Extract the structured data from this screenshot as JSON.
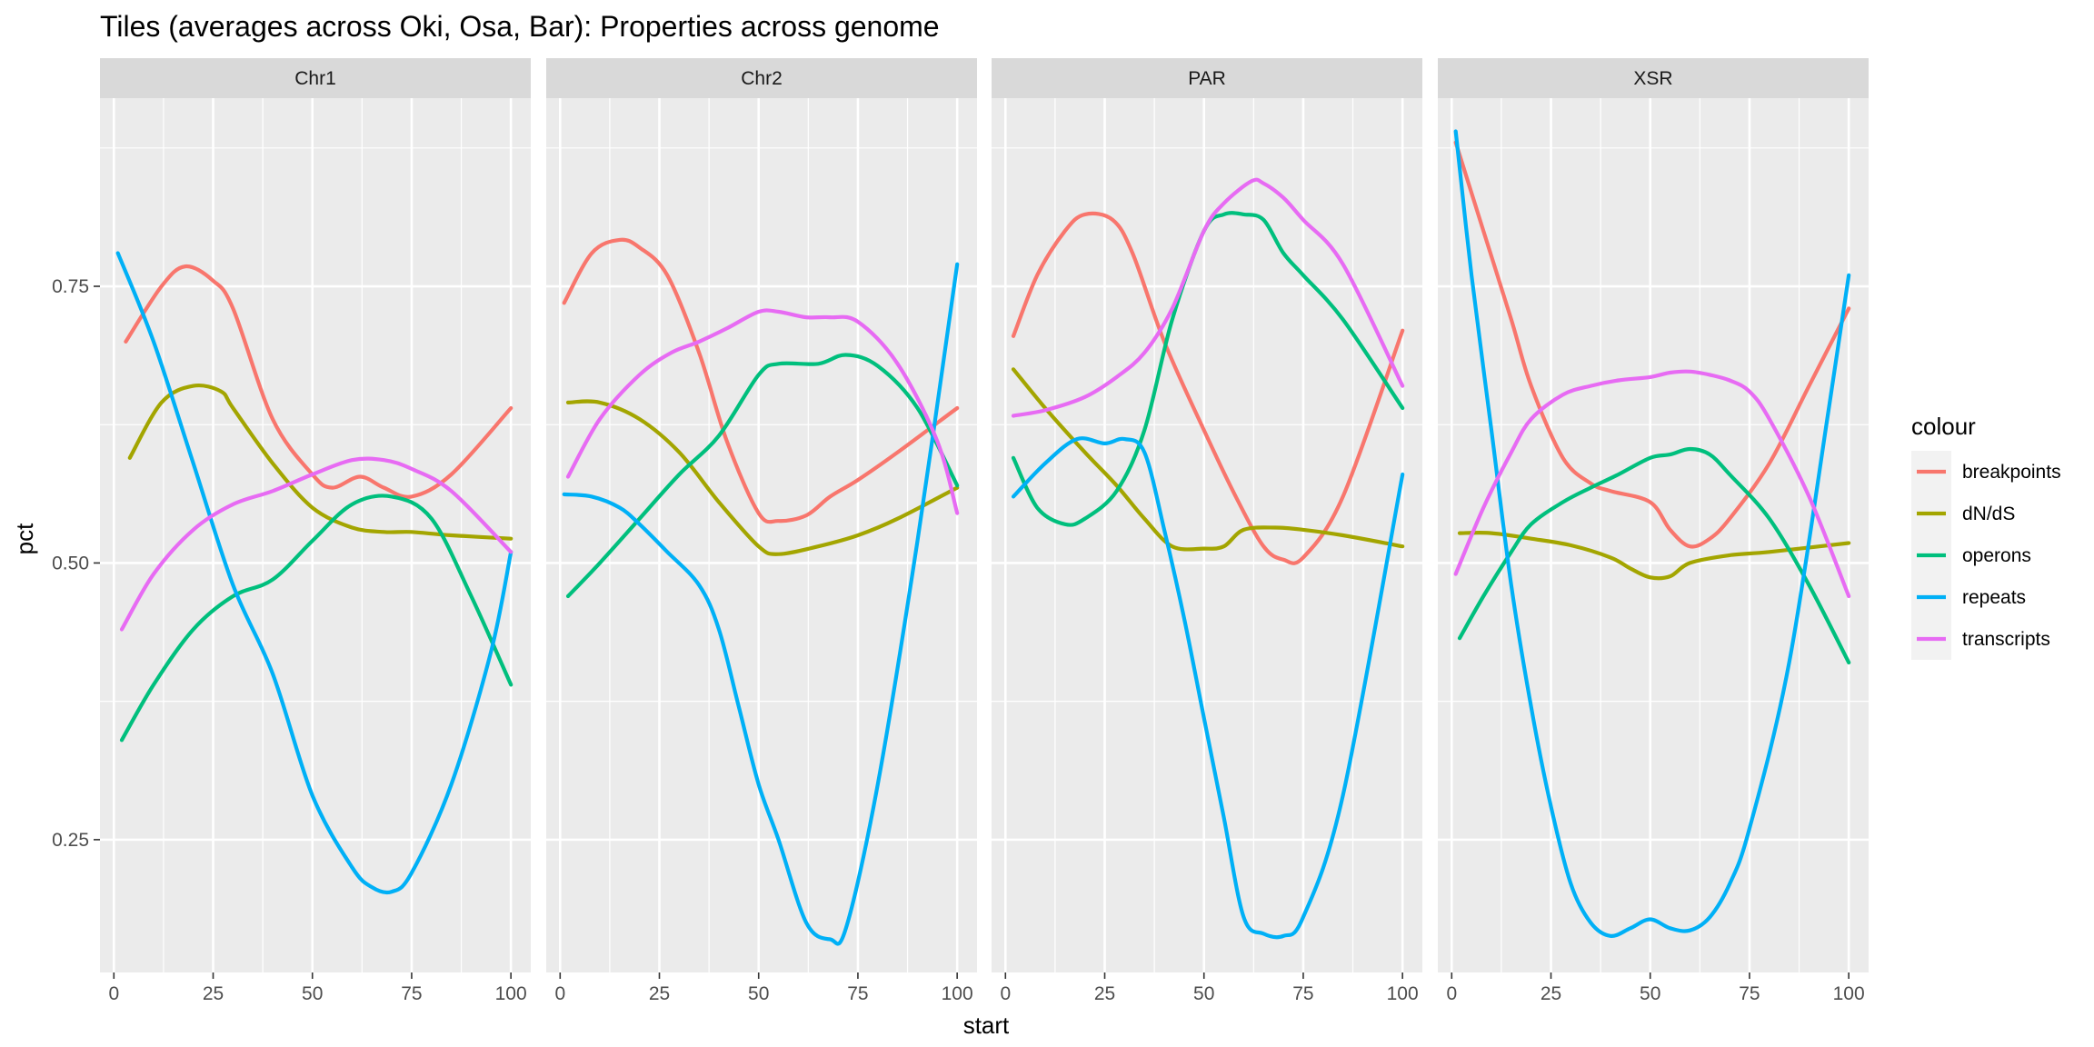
{
  "chart_data": {
    "type": "line",
    "title": "Tiles (averages across Oki, Osa, Bar): Properties across genome",
    "xlabel": "start",
    "ylabel": "pct",
    "xlim": [
      -3.5,
      105
    ],
    "ylim": [
      0.13,
      0.92
    ],
    "x_ticks": [
      0,
      25,
      50,
      75,
      100
    ],
    "y_ticks": [
      0.25,
      0.5,
      0.75
    ],
    "grid": true,
    "legend": {
      "title": "colour",
      "position": "right",
      "entries": [
        "breakpoints",
        "dN/dS",
        "operons",
        "repeats",
        "transcripts"
      ]
    },
    "series_colors": {
      "breakpoints": "#F8766D",
      "dN/dS": "#A3A500",
      "operons": "#00BF7D",
      "repeats": "#00B0F6",
      "transcripts": "#E76BF3"
    },
    "panels": [
      {
        "name": "Chr1",
        "series": [
          {
            "name": "breakpoints",
            "x": [
              3,
              12,
              18,
              25,
              30,
              40,
              50,
              55,
              62,
              68,
              75,
              85,
              100
            ],
            "y": [
              0.7,
              0.75,
              0.768,
              0.755,
              0.73,
              0.63,
              0.58,
              0.568,
              0.578,
              0.568,
              0.56,
              0.58,
              0.64
            ]
          },
          {
            "name": "dN/dS",
            "x": [
              4,
              12,
              20,
              27,
              30,
              40,
              50,
              60,
              68,
              75,
              85,
              100
            ],
            "y": [
              0.595,
              0.645,
              0.66,
              0.655,
              0.64,
              0.59,
              0.55,
              0.532,
              0.528,
              0.528,
              0.525,
              0.522
            ]
          },
          {
            "name": "operons",
            "x": [
              2,
              10,
              20,
              30,
              40,
              50,
              60,
              70,
              80,
              90,
              100
            ],
            "y": [
              0.34,
              0.39,
              0.44,
              0.47,
              0.485,
              0.52,
              0.553,
              0.56,
              0.54,
              0.47,
              0.39
            ]
          },
          {
            "name": "repeats",
            "x": [
              1,
              10,
              20,
              30,
              40,
              50,
              60,
              65,
              70,
              75,
              85,
              95,
              100
            ],
            "y": [
              0.78,
              0.7,
              0.59,
              0.48,
              0.4,
              0.29,
              0.225,
              0.207,
              0.203,
              0.22,
              0.3,
              0.42,
              0.51
            ]
          },
          {
            "name": "transcripts",
            "x": [
              2,
              10,
              20,
              30,
              40,
              50,
              60,
              68,
              75,
              85,
              100
            ],
            "y": [
              0.44,
              0.49,
              0.53,
              0.553,
              0.565,
              0.58,
              0.593,
              0.593,
              0.585,
              0.565,
              0.51
            ]
          }
        ]
      },
      {
        "name": "Chr2",
        "series": [
          {
            "name": "breakpoints",
            "x": [
              1,
              8,
              15,
              20,
              27,
              35,
              42,
              50,
              55,
              62,
              68,
              75,
              85,
              100
            ],
            "y": [
              0.735,
              0.78,
              0.792,
              0.785,
              0.76,
              0.69,
              0.61,
              0.545,
              0.538,
              0.543,
              0.56,
              0.575,
              0.6,
              0.64
            ]
          },
          {
            "name": "dN/dS",
            "x": [
              2,
              10,
              20,
              30,
              40,
              50,
              55,
              65,
              75,
              85,
              100
            ],
            "y": [
              0.645,
              0.645,
              0.63,
              0.6,
              0.555,
              0.515,
              0.508,
              0.515,
              0.525,
              0.54,
              0.568
            ]
          },
          {
            "name": "operons",
            "x": [
              2,
              10,
              20,
              30,
              40,
              50,
              55,
              65,
              72,
              80,
              90,
              100
            ],
            "y": [
              0.47,
              0.5,
              0.54,
              0.58,
              0.615,
              0.67,
              0.68,
              0.68,
              0.688,
              0.678,
              0.64,
              0.57
            ]
          },
          {
            "name": "repeats",
            "x": [
              1,
              8,
              15,
              20,
              27,
              35,
              40,
              45,
              50,
              55,
              62,
              68,
              72,
              80,
              90,
              100
            ],
            "y": [
              0.562,
              0.56,
              0.55,
              0.535,
              0.51,
              0.48,
              0.44,
              0.37,
              0.3,
              0.25,
              0.175,
              0.16,
              0.17,
              0.3,
              0.52,
              0.77
            ]
          },
          {
            "name": "transcripts",
            "x": [
              2,
              10,
              20,
              28,
              35,
              42,
              50,
              55,
              62,
              68,
              75,
              85,
              95,
              100
            ],
            "y": [
              0.578,
              0.63,
              0.67,
              0.69,
              0.7,
              0.712,
              0.727,
              0.727,
              0.722,
              0.722,
              0.718,
              0.68,
              0.61,
              0.545
            ]
          }
        ]
      },
      {
        "name": "PAR",
        "series": [
          {
            "name": "breakpoints",
            "x": [
              2,
              8,
              15,
              20,
              27,
              32,
              40,
              50,
              58,
              65,
              70,
              75,
              85,
              100
            ],
            "y": [
              0.705,
              0.76,
              0.8,
              0.815,
              0.81,
              0.78,
              0.7,
              0.62,
              0.56,
              0.515,
              0.503,
              0.505,
              0.56,
              0.71
            ]
          },
          {
            "name": "dN/dS",
            "x": [
              2,
              10,
              20,
              28,
              35,
              42,
              50,
              55,
              60,
              68,
              75,
              85,
              100
            ],
            "y": [
              0.675,
              0.64,
              0.6,
              0.57,
              0.54,
              0.515,
              0.513,
              0.515,
              0.53,
              0.532,
              0.53,
              0.525,
              0.515
            ]
          },
          {
            "name": "operons",
            "x": [
              2,
              8,
              15,
              20,
              28,
              35,
              42,
              50,
              55,
              60,
              65,
              70,
              75,
              85,
              100
            ],
            "y": [
              0.595,
              0.55,
              0.535,
              0.54,
              0.565,
              0.62,
              0.72,
              0.8,
              0.815,
              0.815,
              0.81,
              0.78,
              0.76,
              0.72,
              0.64
            ]
          },
          {
            "name": "repeats",
            "x": [
              2,
              10,
              18,
              25,
              30,
              35,
              40,
              45,
              50,
              55,
              60,
              65,
              70,
              75,
              85,
              100
            ],
            "y": [
              0.56,
              0.59,
              0.612,
              0.608,
              0.612,
              0.6,
              0.53,
              0.45,
              0.36,
              0.27,
              0.18,
              0.165,
              0.163,
              0.18,
              0.29,
              0.58
            ]
          },
          {
            "name": "transcripts",
            "x": [
              2,
              10,
              20,
              28,
              35,
              42,
              50,
              55,
              62,
              65,
              70,
              75,
              85,
              100
            ],
            "y": [
              0.633,
              0.638,
              0.65,
              0.668,
              0.69,
              0.73,
              0.8,
              0.825,
              0.845,
              0.843,
              0.83,
              0.81,
              0.77,
              0.66
            ]
          }
        ]
      },
      {
        "name": "XSR",
        "series": [
          {
            "name": "breakpoints",
            "x": [
              1,
              8,
              15,
              20,
              28,
              35,
              40,
              50,
              55,
              60,
              65,
              70,
              80,
              90,
              100
            ],
            "y": [
              0.88,
              0.8,
              0.72,
              0.66,
              0.595,
              0.572,
              0.565,
              0.555,
              0.53,
              0.515,
              0.522,
              0.54,
              0.59,
              0.66,
              0.73
            ]
          },
          {
            "name": "dN/dS",
            "x": [
              2,
              10,
              20,
              30,
              40,
              45,
              50,
              55,
              60,
              70,
              80,
              100
            ],
            "y": [
              0.527,
              0.527,
              0.522,
              0.516,
              0.505,
              0.495,
              0.487,
              0.488,
              0.5,
              0.507,
              0.51,
              0.518
            ]
          },
          {
            "name": "operons",
            "x": [
              2,
              8,
              15,
              20,
              28,
              35,
              42,
              50,
              55,
              60,
              65,
              70,
              80,
              90,
              100
            ],
            "y": [
              0.432,
              0.47,
              0.51,
              0.535,
              0.555,
              0.568,
              0.58,
              0.595,
              0.598,
              0.603,
              0.598,
              0.58,
              0.54,
              0.48,
              0.41
            ]
          },
          {
            "name": "repeats",
            "x": [
              1,
              5,
              10,
              15,
              20,
              25,
              30,
              35,
              40,
              45,
              50,
              55,
              60,
              65,
              70,
              75,
              85,
              95,
              100
            ],
            "y": [
              0.89,
              0.76,
              0.62,
              0.48,
              0.37,
              0.28,
              0.21,
              0.175,
              0.163,
              0.17,
              0.178,
              0.17,
              0.168,
              0.18,
              0.21,
              0.26,
              0.41,
              0.64,
              0.76
            ]
          },
          {
            "name": "transcripts",
            "x": [
              1,
              8,
              15,
              20,
              28,
              35,
              42,
              50,
              55,
              60,
              65,
              70,
              75,
              80,
              90,
              100
            ],
            "y": [
              0.49,
              0.55,
              0.6,
              0.63,
              0.652,
              0.66,
              0.665,
              0.668,
              0.672,
              0.673,
              0.67,
              0.665,
              0.655,
              0.63,
              0.56,
              0.47
            ]
          }
        ]
      }
    ]
  }
}
